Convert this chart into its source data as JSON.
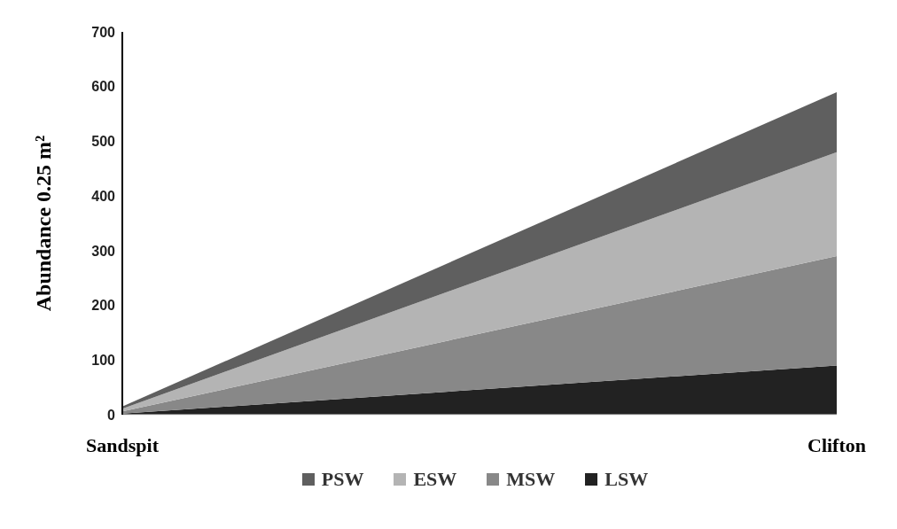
{
  "chart_data": {
    "type": "area",
    "stacked": true,
    "ylabel": "Abundance  0.25 m²",
    "categories": [
      "Sandspit",
      "Clifton"
    ],
    "ylim": [
      0,
      700
    ],
    "yticks": [
      0,
      100,
      200,
      300,
      400,
      500,
      600,
      700
    ],
    "grid": false,
    "legend": "bottom",
    "series": [
      {
        "name": "LSW",
        "color": "#222222",
        "values": [
          2,
          90
        ]
      },
      {
        "name": "MSW",
        "color": "#888888",
        "values": [
          4,
          200
        ]
      },
      {
        "name": "ESW",
        "color": "#b4b4b4",
        "values": [
          5,
          190
        ]
      },
      {
        "name": "PSW",
        "color": "#5f5f5f",
        "values": [
          4,
          110
        ]
      }
    ]
  }
}
